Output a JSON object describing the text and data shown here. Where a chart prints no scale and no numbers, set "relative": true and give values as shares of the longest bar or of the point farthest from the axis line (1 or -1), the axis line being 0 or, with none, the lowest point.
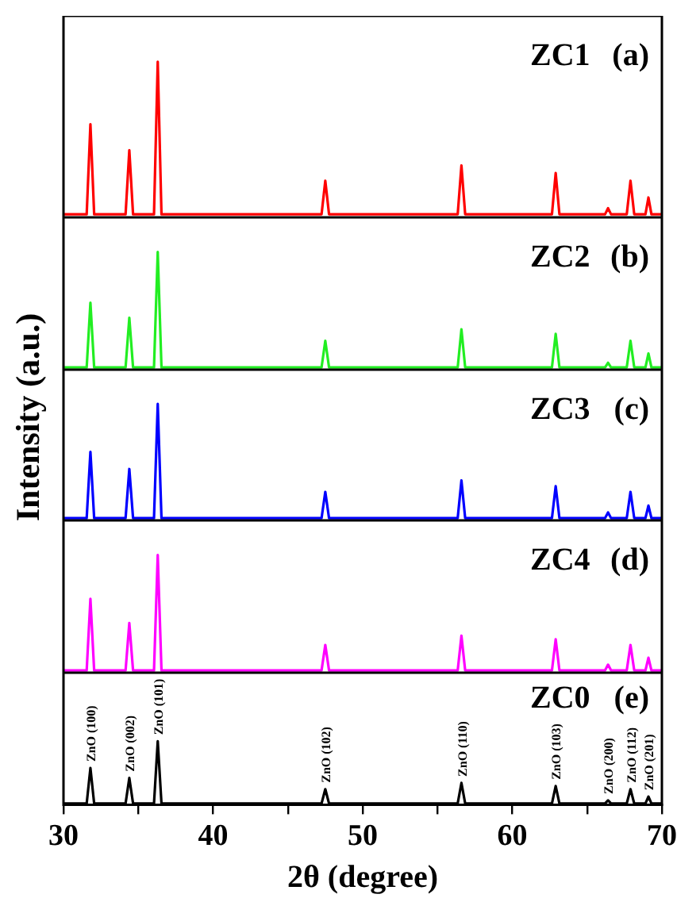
{
  "chart_data": [
    {
      "type": "line",
      "annotations": [
        "ZC1",
        "(a)"
      ],
      "relative": true,
      "marker": "none",
      "line_style": "solid",
      "tick_labels": false,
      "xlim": [
        30,
        70
      ],
      "x": [
        30,
        31.55,
        31.8,
        32.05,
        34.15,
        34.4,
        34.65,
        36.05,
        36.3,
        36.55,
        47.25,
        47.5,
        47.75,
        56.35,
        56.6,
        56.85,
        62.65,
        62.9,
        63.15,
        66.2,
        66.4,
        66.6,
        67.65,
        67.9,
        68.15,
        68.9,
        69.1,
        69.3,
        70
      ],
      "series": [
        {
          "color": "#ff0000",
          "values": [
            0,
            0,
            0.59,
            0,
            0,
            0.42,
            0,
            0,
            1,
            0,
            0,
            0.22,
            0,
            0,
            0.32,
            0,
            0,
            0.27,
            0,
            0,
            0.04,
            0,
            0,
            0.22,
            0,
            0,
            0.11,
            0,
            0
          ]
        }
      ]
    },
    {
      "type": "line",
      "annotations": [
        "ZC2",
        "(b)"
      ],
      "relative": true,
      "marker": "none",
      "line_style": "solid",
      "tick_labels": false,
      "xlim": [
        30,
        70
      ],
      "x": [
        30,
        31.55,
        31.8,
        32.05,
        34.15,
        34.4,
        34.65,
        36.05,
        36.3,
        36.55,
        47.25,
        47.5,
        47.75,
        56.35,
        56.6,
        56.85,
        62.65,
        62.9,
        63.15,
        66.2,
        66.4,
        66.6,
        67.65,
        67.9,
        68.15,
        68.9,
        69.1,
        69.3,
        70
      ],
      "series": [
        {
          "color": "#22ee22",
          "values": [
            0,
            0,
            0.56,
            0,
            0,
            0.43,
            0,
            0,
            1,
            0,
            0,
            0.23,
            0,
            0,
            0.33,
            0,
            0,
            0.29,
            0,
            0,
            0.04,
            0,
            0,
            0.23,
            0,
            0,
            0.12,
            0,
            0
          ]
        }
      ]
    },
    {
      "type": "line",
      "ylabel": "Intensity (a.u.)",
      "annotations": [
        "ZC3",
        "(c)"
      ],
      "relative": true,
      "marker": "none",
      "line_style": "solid",
      "tick_labels": false,
      "xlim": [
        30,
        70
      ],
      "x": [
        30,
        31.55,
        31.8,
        32.05,
        34.15,
        34.4,
        34.65,
        36.05,
        36.3,
        36.55,
        47.25,
        47.5,
        47.75,
        56.35,
        56.6,
        56.85,
        62.65,
        62.9,
        63.15,
        66.2,
        66.4,
        66.6,
        67.65,
        67.9,
        68.15,
        68.9,
        69.1,
        69.3,
        70
      ],
      "series": [
        {
          "color": "#0000ff",
          "values": [
            0,
            0,
            0.58,
            0,
            0,
            0.43,
            0,
            0,
            1,
            0,
            0,
            0.23,
            0,
            0,
            0.33,
            0,
            0,
            0.28,
            0,
            0,
            0.05,
            0,
            0,
            0.23,
            0,
            0,
            0.11,
            0,
            0
          ]
        }
      ]
    },
    {
      "type": "line",
      "annotations": [
        "ZC4",
        "(d)"
      ],
      "relative": true,
      "marker": "none",
      "line_style": "solid",
      "tick_labels": false,
      "xlim": [
        30,
        70
      ],
      "x": [
        30,
        31.55,
        31.8,
        32.05,
        34.15,
        34.4,
        34.65,
        36.05,
        36.3,
        36.55,
        47.25,
        47.5,
        47.75,
        56.35,
        56.6,
        56.85,
        62.65,
        62.9,
        63.15,
        66.2,
        66.4,
        66.6,
        67.65,
        67.9,
        68.15,
        68.9,
        69.1,
        69.3,
        70
      ],
      "series": [
        {
          "color": "#ff00ff",
          "values": [
            0,
            0,
            0.62,
            0,
            0,
            0.41,
            0,
            0,
            1,
            0,
            0,
            0.22,
            0,
            0,
            0.3,
            0,
            0,
            0.27,
            0,
            0,
            0.05,
            0,
            0,
            0.22,
            0,
            0,
            0.11,
            0,
            0
          ]
        }
      ]
    },
    {
      "type": "line",
      "xlabel": "2θ (degree)",
      "relative": true,
      "marker": "none",
      "line_style": "solid",
      "tick_labels": "x",
      "xlim": [
        30,
        70
      ],
      "xticks": [
        30,
        {
          "value": 35,
          "label": null
        },
        40,
        {
          "value": 45,
          "label": null
        },
        50,
        {
          "value": 55,
          "label": null
        },
        60,
        {
          "value": 65,
          "label": null
        },
        70
      ],
      "annotations": [
        "ZC0",
        "(e)",
        {
          "text": "ZnO (100)",
          "x": 31.8,
          "y": 0.57
        },
        {
          "text": "ZnO (002)",
          "x": 34.4,
          "y": 0.41
        },
        {
          "text": "ZnO (101)",
          "x": 36.3,
          "y": 1
        },
        {
          "text": "ZnO (102)",
          "x": 47.5,
          "y": 0.23
        },
        {
          "text": "ZnO (110)",
          "x": 56.6,
          "y": 0.33
        },
        {
          "text": "ZnO (103)",
          "x": 62.9,
          "y": 0.28
        },
        {
          "text": "ZnO (200)",
          "x": 66.4,
          "y": 0.05
        },
        {
          "text": "ZnO (112)",
          "x": 67.9,
          "y": 0.23
        },
        {
          "text": "ZnO (201)",
          "x": 69.1,
          "y": 0.11
        }
      ],
      "x": [
        30,
        31.55,
        31.8,
        32.05,
        34.15,
        34.4,
        34.65,
        36.05,
        36.3,
        36.55,
        47.25,
        47.5,
        47.75,
        56.35,
        56.6,
        56.85,
        62.65,
        62.9,
        63.15,
        66.2,
        66.4,
        66.6,
        67.65,
        67.9,
        68.15,
        68.9,
        69.1,
        69.3,
        70
      ],
      "series": [
        {
          "color": "#000000",
          "values": [
            0,
            0,
            0.57,
            0,
            0,
            0.41,
            0,
            0,
            1,
            0,
            0,
            0.23,
            0,
            0,
            0.33,
            0,
            0,
            0.28,
            0,
            0,
            0.05,
            0,
            0,
            0.23,
            0,
            0,
            0.11,
            0,
            0
          ]
        }
      ]
    }
  ]
}
